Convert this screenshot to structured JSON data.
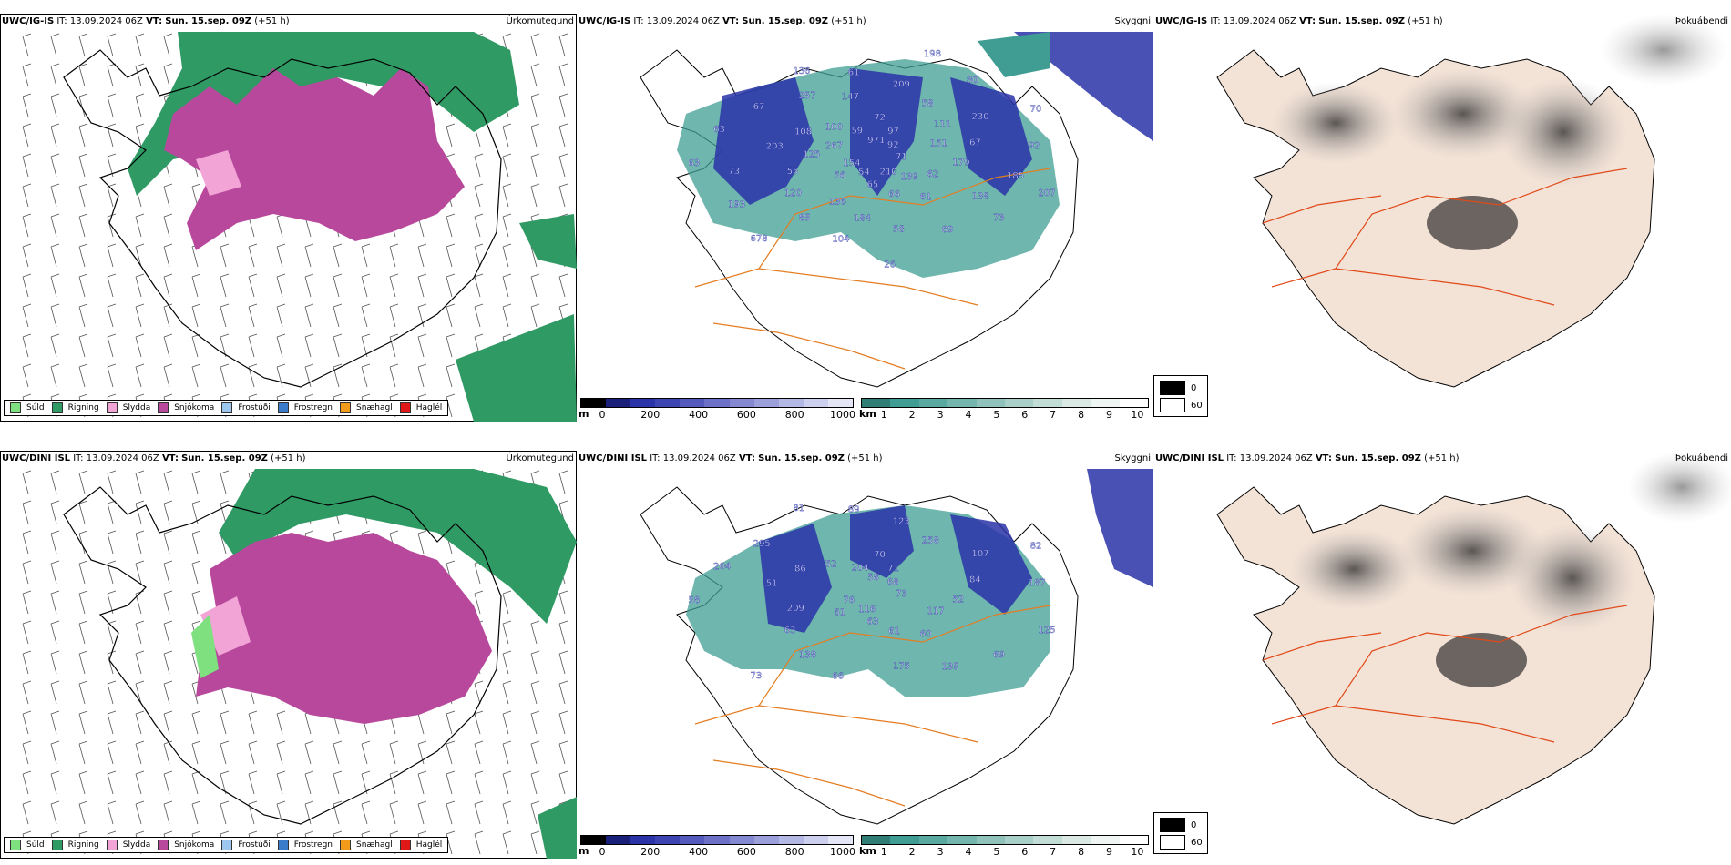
{
  "colors": {
    "suld": "#7ee07e",
    "rigning": "#2f9a63",
    "slydda": "#f2a4d6",
    "snjokoma": "#b8489c",
    "frostudi": "#9ec7ef",
    "frostregn": "#3a7cc9",
    "snaehagl": "#f29a1a",
    "haglel": "#e01818",
    "road": "#e47d22",
    "water": "#2a33a8",
    "land_bg": "#f3e2d6"
  },
  "rows": [
    {
      "model": "UWC/IG-IS",
      "it_label": "IT:",
      "it_value": "13.09.2024 06Z",
      "vt_label": "VT:",
      "vt_value": "Sun. 15.sep. 09Z",
      "lead": "(+51 h)",
      "labels": [
        "71",
        "56",
        "72",
        "61",
        "203",
        "230",
        "104",
        "136",
        "207",
        "154",
        "97",
        "66",
        "108",
        "67",
        "85",
        "61",
        "73",
        "63",
        "92",
        "65",
        "100",
        "179",
        "120",
        "209",
        "89",
        "63",
        "70",
        "54",
        "59",
        "62",
        "55",
        "58",
        "58",
        "67",
        "92",
        "678",
        "971",
        "139",
        "125",
        "111",
        "184",
        "257",
        "185",
        "193",
        "198",
        "210",
        "267",
        "151",
        "136",
        "147",
        "138",
        "73",
        "80",
        "26"
      ]
    },
    {
      "model": "UWC/DINI ISL",
      "it_label": "IT:",
      "it_value": "13.09.2024 06Z",
      "vt_label": "VT:",
      "vt_value": "Sun. 15.sep. 09Z",
      "lead": "(+51 h)",
      "labels": [
        "73",
        "61",
        "70",
        "60",
        "51",
        "107",
        "66",
        "81",
        "125",
        "76",
        "71",
        "61",
        "86",
        "84",
        "138",
        "89",
        "69",
        "58",
        "68",
        "63",
        "52",
        "52",
        "63",
        "123",
        "135",
        "204",
        "82",
        "116",
        "204",
        "117",
        "209",
        "258",
        "175",
        "295",
        "187",
        "73",
        "58"
      ]
    }
  ],
  "panel_titles": {
    "precip": "Úrkomutegund",
    "cloud": "Skyggni",
    "fog": "Þokuábendi"
  },
  "precip_legend": [
    {
      "label": "Súld",
      "color": "#7ee07e"
    },
    {
      "label": "Rigning",
      "color": "#2f9a63"
    },
    {
      "label": "Slydda",
      "color": "#f2a4d6"
    },
    {
      "label": "Snjókoma",
      "color": "#b8489c"
    },
    {
      "label": "Frostúði",
      "color": "#9ec7ef"
    },
    {
      "label": "Frostregn",
      "color": "#3a7cc9"
    },
    {
      "label": "Snæhagl",
      "color": "#f29a1a"
    },
    {
      "label": "Haglél",
      "color": "#e01818"
    }
  ],
  "colorbar_m": {
    "unit": "m",
    "ticks": [
      "0",
      "200",
      "400",
      "600",
      "800",
      "1000"
    ]
  },
  "colorbar_km": {
    "unit": "km",
    "ticks": [
      "1",
      "2",
      "3",
      "4",
      "5",
      "6",
      "7",
      "8",
      "9",
      "10"
    ]
  },
  "fog_legend": {
    "black": "0",
    "white": "60"
  }
}
